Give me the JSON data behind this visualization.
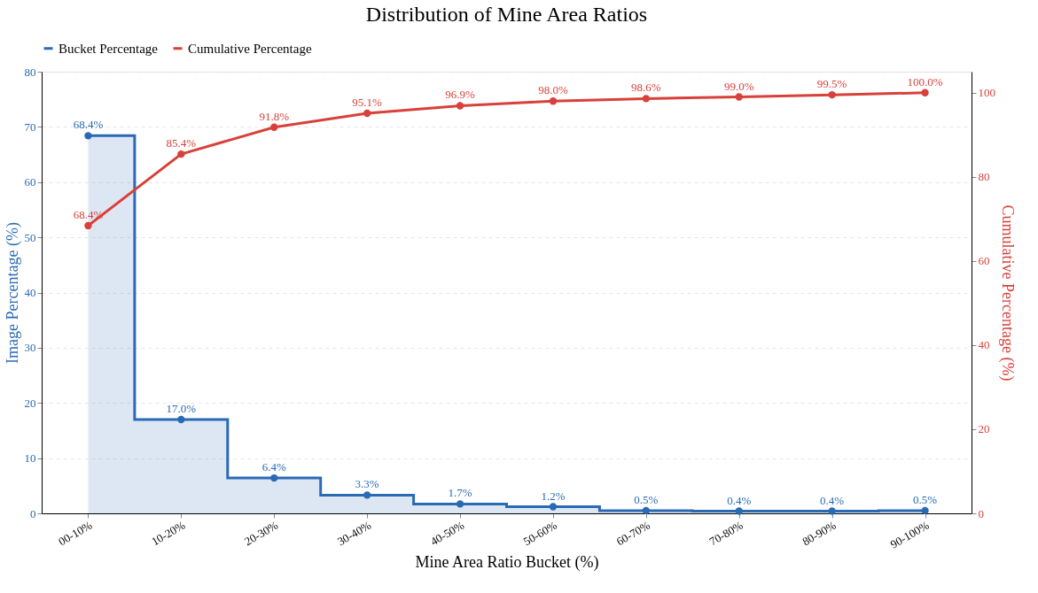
{
  "chart_data": {
    "type": "line",
    "title": "Distribution of Mine Area Ratios",
    "xlabel": "Mine Area Ratio Bucket (%)",
    "ylabel": "Image Percentage (%)",
    "y2label": "Cumulative Percentage (%)",
    "categories": [
      "00-10%",
      "10-20%",
      "20-30%",
      "30-40%",
      "40-50%",
      "50-60%",
      "60-70%",
      "70-80%",
      "80-90%",
      "90-100%"
    ],
    "series": [
      {
        "name": "Bucket Percentage",
        "type": "step",
        "color": "#2a6ab5",
        "values": [
          68.4,
          17.0,
          6.4,
          3.3,
          1.7,
          1.2,
          0.5,
          0.4,
          0.4,
          0.5
        ],
        "value_labels": [
          "68.4%",
          "17.0%",
          "6.4%",
          "3.3%",
          "1.7%",
          "1.2%",
          "0.5%",
          "0.4%",
          "0.4%",
          "0.5%"
        ]
      },
      {
        "name": "Cumulative Percentage",
        "axis": "y2",
        "color": "#d9403a",
        "values": [
          68.4,
          85.4,
          91.8,
          95.1,
          96.9,
          98.0,
          98.6,
          99.0,
          99.5,
          100.0
        ],
        "value_labels": [
          "68.4%",
          "85.4%",
          "91.8%",
          "95.1%",
          "96.9%",
          "98.0%",
          "98.6%",
          "99.0%",
          "99.5%",
          "100.0%"
        ]
      }
    ],
    "ylim": [
      0,
      80
    ],
    "yticks": [
      0,
      10,
      20,
      30,
      40,
      50,
      60,
      70,
      80
    ],
    "y2lim": [
      0,
      105
    ],
    "y2ticks": [
      0,
      20,
      40,
      60,
      80,
      100
    ],
    "grid": "y",
    "legend": "top",
    "marker": "circle",
    "line_style": "solid"
  }
}
